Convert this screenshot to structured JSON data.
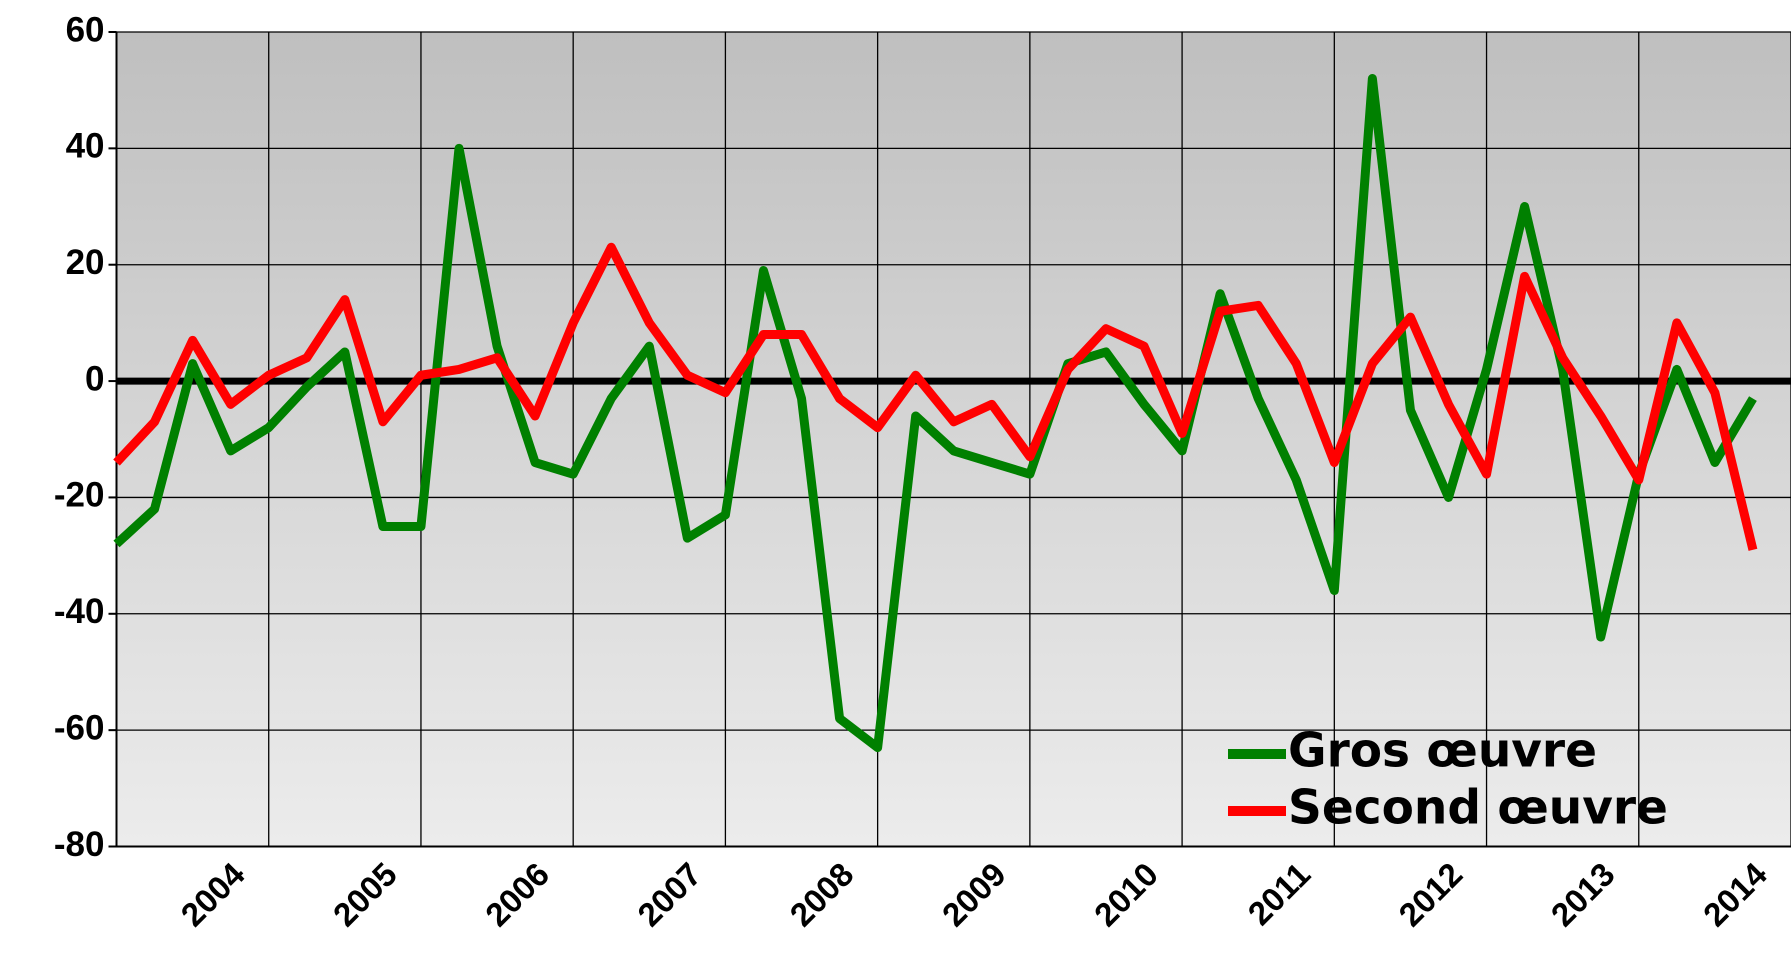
{
  "chart_data": {
    "type": "line",
    "categories": [
      null,
      null,
      null,
      null,
      "2004",
      null,
      null,
      null,
      "2005",
      null,
      null,
      null,
      "2006",
      null,
      null,
      null,
      "2007",
      null,
      null,
      null,
      "2008",
      null,
      null,
      null,
      "2009",
      null,
      null,
      null,
      "2010",
      null,
      null,
      null,
      "2011",
      null,
      null,
      null,
      "2012",
      null,
      null,
      null,
      "2013",
      null,
      null,
      null,
      "2014"
    ],
    "series": [
      {
        "name": "Gros œuvre",
        "color": "#008000",
        "values": [
          -28,
          -22,
          3,
          -12,
          -8,
          -1,
          5,
          -25,
          -25,
          40,
          6,
          -14,
          -16,
          -3,
          6,
          -27,
          -23,
          19,
          -3,
          -58,
          -63,
          -6,
          -12,
          -14,
          -16,
          3,
          5,
          -4,
          -12,
          15,
          -3,
          -17,
          -36,
          52,
          -5,
          -20,
          2,
          30,
          2,
          -44,
          -16,
          2,
          -14,
          -3,
          null
        ]
      },
      {
        "name": "Second œuvre",
        "color": "#ff0000",
        "values": [
          -14,
          -7,
          7,
          -4,
          1,
          4,
          14,
          -7,
          1,
          2,
          4,
          -6,
          10,
          23,
          10,
          1,
          -2,
          8,
          8,
          -3,
          -8,
          1,
          -7,
          -4,
          -13,
          2,
          9,
          6,
          -9,
          12,
          13,
          3,
          -14,
          3,
          11,
          -4,
          -16,
          18,
          4,
          -6,
          -17,
          10,
          -2,
          -29,
          null
        ]
      }
    ],
    "ylim": [
      -80,
      60
    ],
    "yticks": [
      -80,
      -60,
      -40,
      -20,
      0,
      20,
      40,
      60
    ],
    "grid": true
  }
}
